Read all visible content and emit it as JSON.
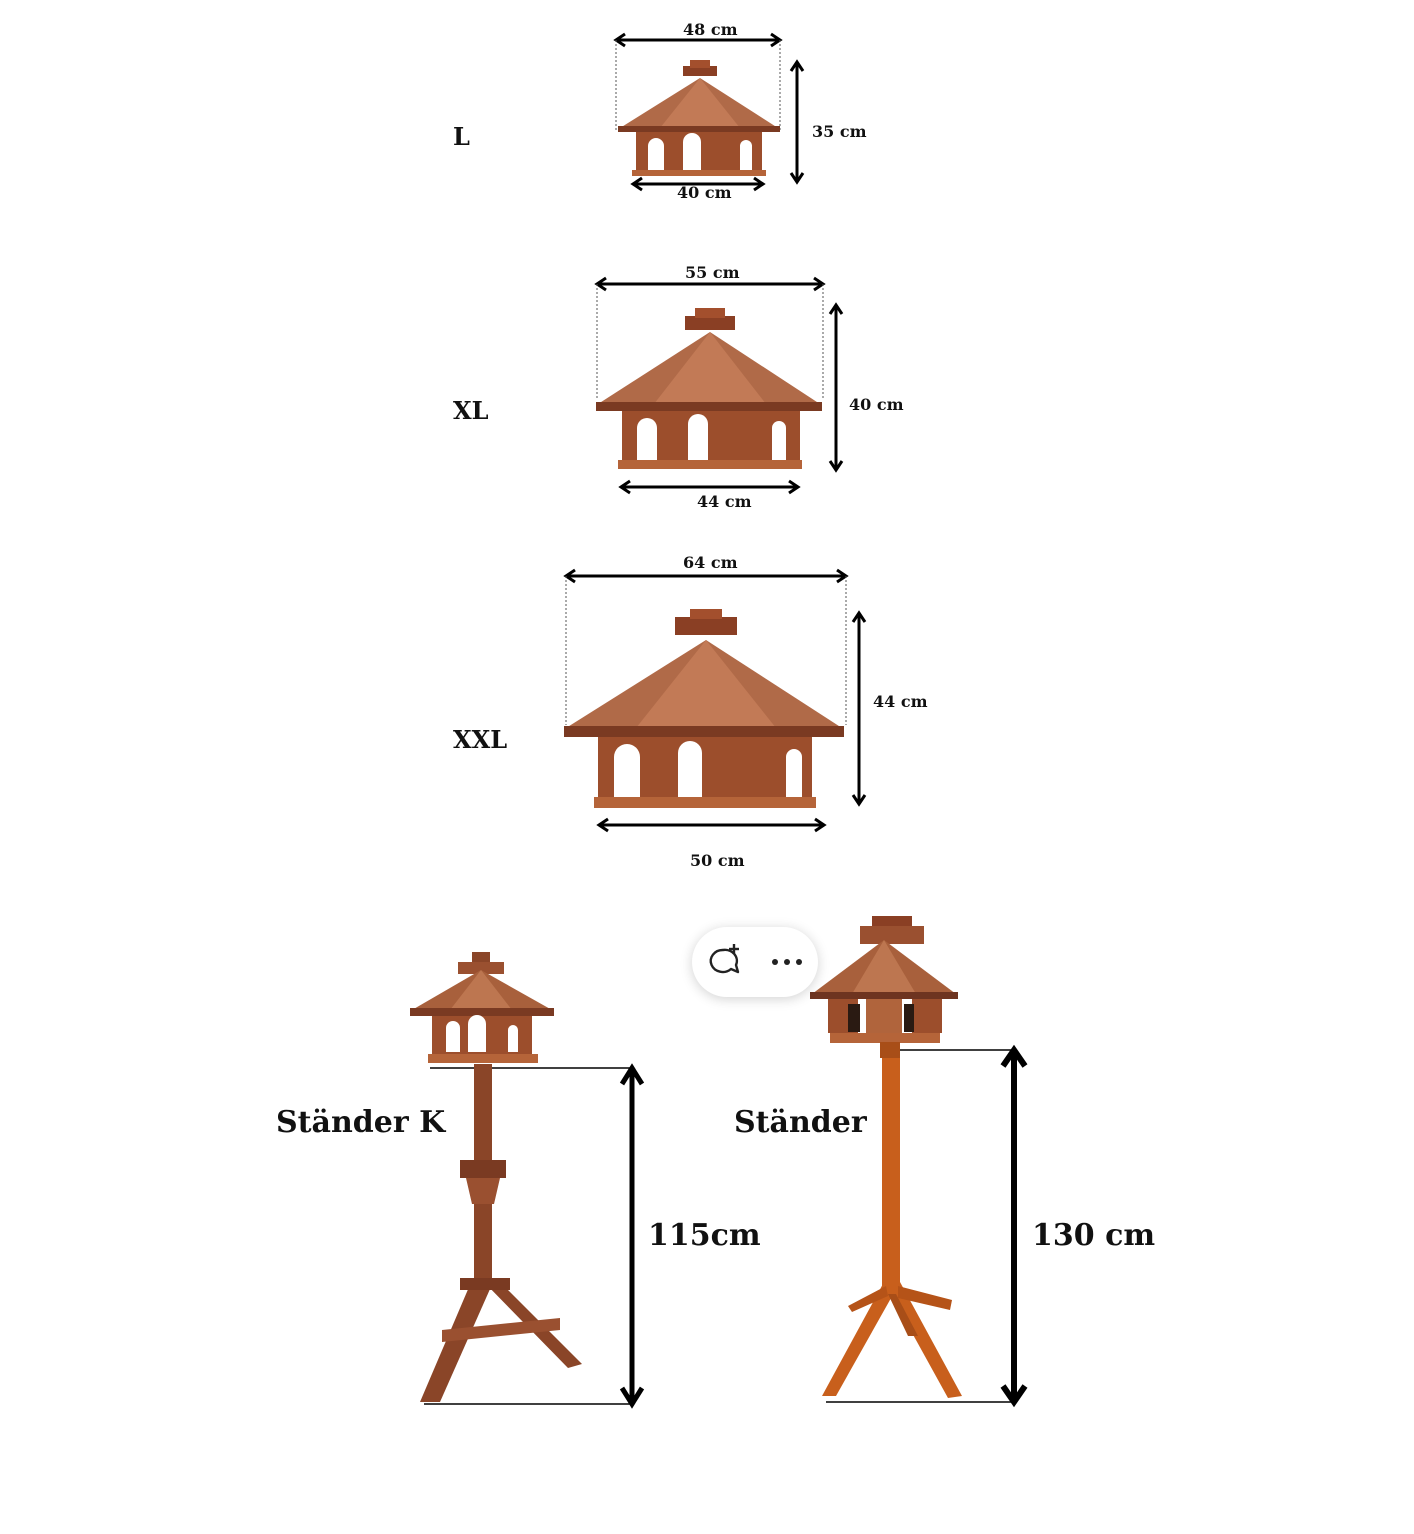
{
  "feeders": [
    {
      "size": "L",
      "top_width": "48 cm",
      "bottom_width": "40 cm",
      "height": "35 cm"
    },
    {
      "size": "XL",
      "top_width": "55 cm",
      "bottom_width": "44 cm",
      "height": "40 cm"
    },
    {
      "size": "XXL",
      "top_width": "64 cm",
      "bottom_width": "50 cm",
      "height": "44 cm"
    }
  ],
  "stands": [
    {
      "name": "Ständer K",
      "height": "115cm"
    },
    {
      "name": "Ständer",
      "height": "130 cm"
    }
  ],
  "toolbar": {
    "comment_icon": "comment-add-icon",
    "more_icon": "more-dots-icon"
  },
  "colors": {
    "wood_dark": "#7a3a22",
    "wood_mid": "#9c4e2c",
    "wood_light": "#c06a3a",
    "stand_orange": "#c85f1c"
  }
}
